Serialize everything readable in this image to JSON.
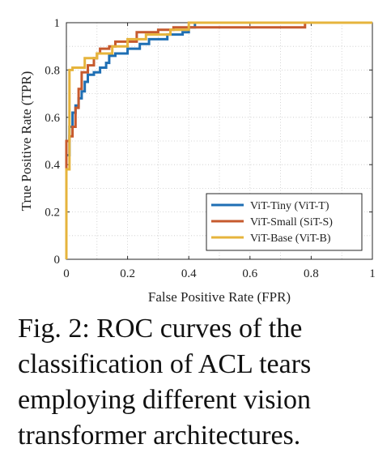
{
  "chart_data": {
    "type": "line",
    "xlabel": "False Positive Rate (FPR)",
    "ylabel": "True Positive Rate (TPR)",
    "xlim": [
      0,
      1
    ],
    "ylim": [
      0,
      1
    ],
    "xticks": [
      "0",
      "0.2",
      "0.4",
      "0.6",
      "0.8",
      "1"
    ],
    "yticks": [
      "0",
      "0.2",
      "0.4",
      "0.6",
      "0.8",
      "1"
    ],
    "grid": true,
    "legend_position": "bottom-right",
    "series": [
      {
        "name": "ViT-Tiny (ViT-T)",
        "color": "#1f6fb4",
        "x": [
          0,
          0,
          0.01,
          0.01,
          0.02,
          0.02,
          0.03,
          0.03,
          0.04,
          0.04,
          0.05,
          0.05,
          0.06,
          0.06,
          0.07,
          0.07,
          0.09,
          0.09,
          0.11,
          0.11,
          0.13,
          0.13,
          0.14,
          0.14,
          0.16,
          0.16,
          0.2,
          0.2,
          0.24,
          0.24,
          0.27,
          0.27,
          0.33,
          0.33,
          0.38,
          0.38,
          0.4,
          0.4,
          0.42,
          0.42,
          1
        ],
        "y": [
          0,
          0.44,
          0.44,
          0.56,
          0.56,
          0.62,
          0.62,
          0.65,
          0.65,
          0.68,
          0.68,
          0.71,
          0.71,
          0.75,
          0.75,
          0.78,
          0.78,
          0.79,
          0.79,
          0.81,
          0.81,
          0.83,
          0.83,
          0.86,
          0.86,
          0.87,
          0.87,
          0.89,
          0.89,
          0.91,
          0.91,
          0.93,
          0.93,
          0.95,
          0.95,
          0.96,
          0.96,
          0.98,
          0.98,
          1,
          1
        ]
      },
      {
        "name": "ViT-Small (SiT-S)",
        "color": "#c65a2e",
        "x": [
          0,
          0,
          0.01,
          0.01,
          0.02,
          0.02,
          0.03,
          0.03,
          0.04,
          0.04,
          0.05,
          0.05,
          0.07,
          0.07,
          0.09,
          0.09,
          0.1,
          0.1,
          0.11,
          0.11,
          0.14,
          0.14,
          0.16,
          0.16,
          0.23,
          0.23,
          0.3,
          0.3,
          0.35,
          0.35,
          0.78,
          0.78,
          1
        ],
        "y": [
          0,
          0.5,
          0.5,
          0.52,
          0.52,
          0.56,
          0.56,
          0.64,
          0.64,
          0.72,
          0.72,
          0.79,
          0.79,
          0.82,
          0.82,
          0.85,
          0.85,
          0.87,
          0.87,
          0.89,
          0.89,
          0.9,
          0.9,
          0.92,
          0.92,
          0.96,
          0.96,
          0.97,
          0.97,
          0.98,
          0.98,
          1,
          1
        ]
      },
      {
        "name": "ViT-Base (ViT-B)",
        "color": "#e6b43c",
        "x": [
          0,
          0,
          0.01,
          0.01,
          0.02,
          0.02,
          0.06,
          0.06,
          0.1,
          0.1,
          0.15,
          0.15,
          0.2,
          0.2,
          0.26,
          0.26,
          0.34,
          0.34,
          0.4,
          0.4,
          1
        ],
        "y": [
          0,
          0.38,
          0.38,
          0.8,
          0.8,
          0.81,
          0.81,
          0.85,
          0.85,
          0.87,
          0.87,
          0.9,
          0.9,
          0.93,
          0.93,
          0.95,
          0.95,
          0.97,
          0.97,
          1,
          1
        ]
      }
    ]
  },
  "caption": {
    "lines": [
      "Fig. 2: ROC curves of the",
      "classification of ACL tears",
      "employing different vision",
      "transformer architectures."
    ]
  }
}
